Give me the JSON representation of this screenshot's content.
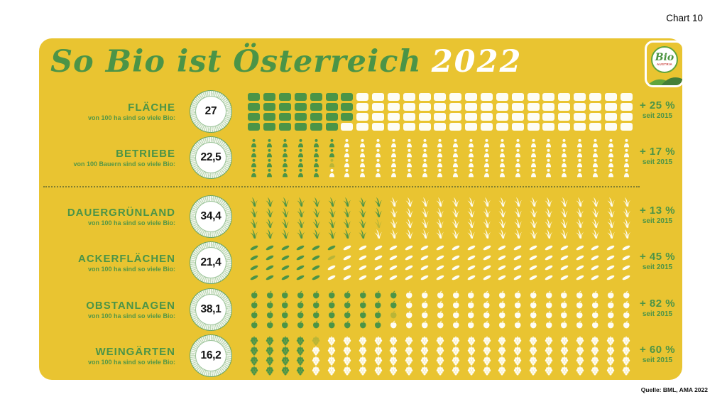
{
  "page": {
    "chart_label": "Chart 10",
    "source": "Quelle: BML, AMA 2022"
  },
  "header": {
    "title": "So Bio ist Österreich",
    "year": "2022"
  },
  "logo": {
    "line1": "Bio",
    "line2": "AUSTRIA"
  },
  "colors": {
    "card_yellow": "#E9C431",
    "green": "#4B9447",
    "icon_white": "#FEFDF4",
    "badge_ring": "#BFD9B8",
    "number_dark": "#141414",
    "logo_red": "#C8413B",
    "divider_olive": "#6E7230"
  },
  "chart_data": {
    "type": "pictogram",
    "title": "So Bio ist Österreich 2022",
    "source": "Quelle: BML, AMA 2022",
    "unit_total": 100,
    "grid": {
      "columns": 25,
      "rows": 4,
      "fill_order": "column-major"
    },
    "rows": [
      {
        "category": "FLÄCHE",
        "sublabel": "von 100 ha sind so viele Bio:",
        "value": 27,
        "value_label": "27",
        "change": "+ 25 %",
        "change_since": "seit 2015",
        "icon": "field-square"
      },
      {
        "category": "BETRIEBE",
        "sublabel": "von 100 Bauern sind so viele Bio:",
        "value": 22.5,
        "value_label": "22,5",
        "change": "+ 17 %",
        "change_since": "seit 2015",
        "icon": "farmer"
      },
      {
        "category": "DAUERGRÜNLAND",
        "sublabel": "von 100 ha sind so viele Bio:",
        "value": 34.4,
        "value_label": "34,4",
        "change": "+ 13 %",
        "change_since": "seit 2015",
        "icon": "grass"
      },
      {
        "category": "ACKERFLÄCHEN",
        "sublabel": "von 100 ha sind so viele Bio:",
        "value": 21.4,
        "value_label": "21,4",
        "change": "+ 45 %",
        "change_since": "seit 2015",
        "icon": "grain"
      },
      {
        "category": "OBSTANLAGEN",
        "sublabel": "von 100 ha sind so viele Bio:",
        "value": 38.1,
        "value_label": "38,1",
        "change": "+ 82 %",
        "change_since": "seit 2015",
        "icon": "apple"
      },
      {
        "category": "WEINGÄRTEN",
        "sublabel": "von 100 ha sind so viele Bio:",
        "value": 16.2,
        "value_label": "16,2",
        "change": "+ 60 %",
        "change_since": "seit 2015",
        "icon": "grapes"
      }
    ]
  }
}
